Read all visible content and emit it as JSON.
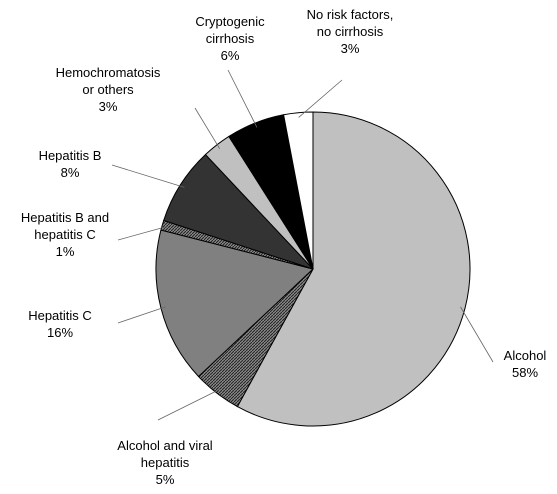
{
  "chart_data": {
    "type": "pie",
    "categories": [
      "Alcohol",
      "Alcohol and viral\nhepatitis",
      "Hepatitis C",
      "Hepatitis B and\nhepatitis C",
      "Hepatitis B",
      "Hemochromatosis\nor others",
      "Cryptogenic\ncirrhosis",
      "No risk factors,\nno cirrhosis"
    ],
    "values": [
      58,
      5,
      16,
      1,
      8,
      3,
      6,
      3
    ],
    "value_labels": [
      "58%",
      "5%",
      "16%",
      "1%",
      "8%",
      "3%",
      "6%",
      "3%"
    ],
    "colors": [
      "#c0c0c0",
      "#4a4a4a",
      "#808080",
      "#5a5a5a",
      "#333333",
      "#c0c0c0",
      "#000000",
      "#ffffff"
    ]
  }
}
